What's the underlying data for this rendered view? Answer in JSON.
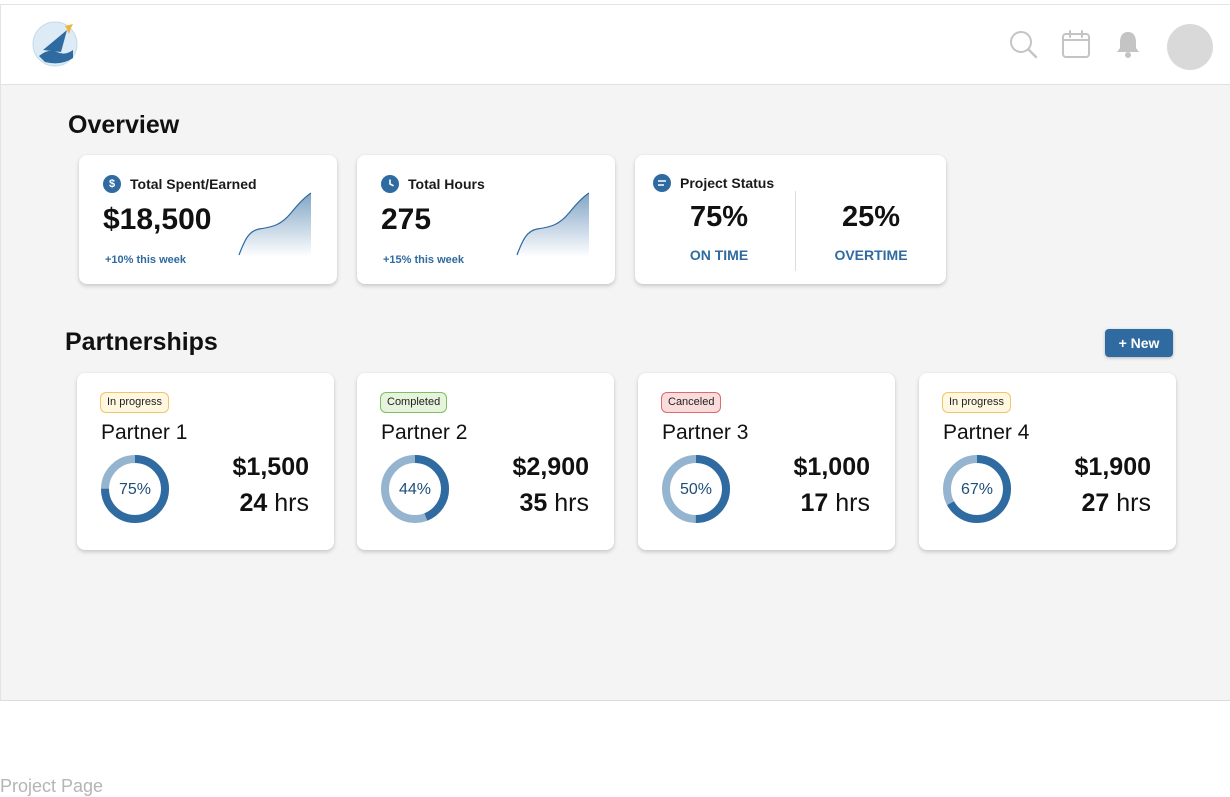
{
  "header": {
    "icons": [
      "search-icon",
      "calendar-icon",
      "bell-icon"
    ]
  },
  "overview": {
    "title": "Overview",
    "spent": {
      "label": "Total Spent/Earned",
      "icon": "dollar-icon",
      "value": "$18,500",
      "delta": "+10% this week"
    },
    "hours": {
      "label": "Total Hours",
      "icon": "clock-icon",
      "value": "275",
      "delta": "+15% this week"
    },
    "status": {
      "label": "Project Status",
      "icon": "list-icon",
      "on_time_pct": "75%",
      "on_time_label": "ON TIME",
      "overtime_pct": "25%",
      "overtime_label": "OVERTIME"
    }
  },
  "partnerships": {
    "title": "Partnerships",
    "new_label": "+ New",
    "items": [
      {
        "status": "In progress",
        "status_type": "progress",
        "name": "Partner 1",
        "pct_label": "75%",
        "pct": 0.75,
        "amount": "$1,500",
        "hours": "24",
        "hours_unit": "hrs"
      },
      {
        "status": "Completed",
        "status_type": "completed",
        "name": "Partner 2",
        "pct_label": "44%",
        "pct": 0.44,
        "amount": "$2,900",
        "hours": "35",
        "hours_unit": "hrs"
      },
      {
        "status": "Canceled",
        "status_type": "canceled",
        "name": "Partner 3",
        "pct_label": "50%",
        "pct": 0.5,
        "amount": "$1,000",
        "hours": "17",
        "hours_unit": "hrs"
      },
      {
        "status": "In progress",
        "status_type": "progress",
        "name": "Partner 4",
        "pct_label": "67%",
        "pct": 0.67,
        "amount": "$1,900",
        "hours": "27",
        "hours_unit": "hrs"
      }
    ]
  },
  "colors": {
    "accent": "#2f6aa0",
    "donut_track": "#94b4cf",
    "donut_fill": "#2f6aa0"
  },
  "caption": "Project Page"
}
